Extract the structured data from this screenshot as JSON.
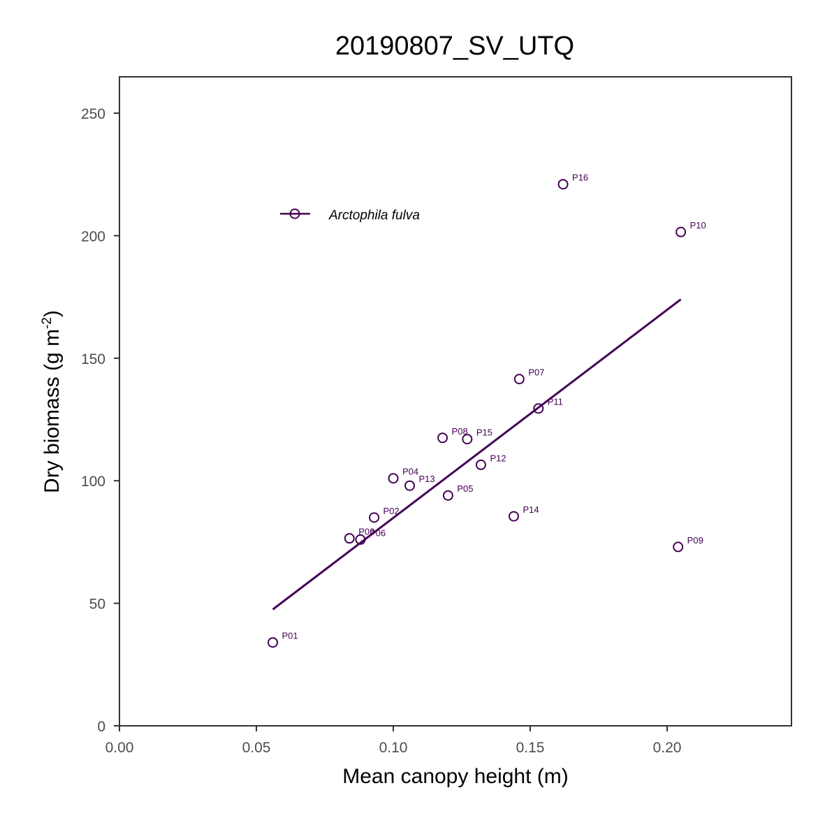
{
  "chart_data": {
    "type": "scatter",
    "title": "20190807_SV_UTQ",
    "xlabel": "Mean canopy height (m)",
    "ylabel": "Dry biomass (g m",
    "ylabel_sup": "-2",
    "ylabel_end": ")",
    "xlim": [
      0,
      0.245
    ],
    "ylim": [
      0,
      263
    ],
    "x_ticks": [
      0.0,
      0.05,
      0.1,
      0.15,
      0.2
    ],
    "x_tick_labels": [
      "0.00",
      "0.05",
      "0.10",
      "0.15",
      "0.20"
    ],
    "y_ticks": [
      0,
      50,
      100,
      150,
      200,
      250
    ],
    "y_tick_labels": [
      "0",
      "50",
      "100",
      "150",
      "200",
      "250"
    ],
    "grid": false,
    "legend": {
      "position": "top-left",
      "entries": [
        "Arctophila fulva"
      ]
    },
    "color": "#440154",
    "series": [
      {
        "name": "Arctophila fulva",
        "points": [
          {
            "label": "P01",
            "x": 0.056,
            "y": 34
          },
          {
            "label": "P02",
            "x": 0.093,
            "y": 85
          },
          {
            "label": "P03",
            "x": 0.084,
            "y": 76.5
          },
          {
            "label": "P04",
            "x": 0.1,
            "y": 101
          },
          {
            "label": "P05",
            "x": 0.12,
            "y": 94
          },
          {
            "label": "P06",
            "x": 0.088,
            "y": 76
          },
          {
            "label": "P07",
            "x": 0.146,
            "y": 141.5
          },
          {
            "label": "P08",
            "x": 0.118,
            "y": 117.5
          },
          {
            "label": "P09",
            "x": 0.204,
            "y": 73
          },
          {
            "label": "P10",
            "x": 0.205,
            "y": 201.5
          },
          {
            "label": "P11",
            "x": 0.153,
            "y": 129.5
          },
          {
            "label": "P12",
            "x": 0.132,
            "y": 106.5
          },
          {
            "label": "P13",
            "x": 0.106,
            "y": 98
          },
          {
            "label": "P14",
            "x": 0.144,
            "y": 85.5
          },
          {
            "label": "P15",
            "x": 0.127,
            "y": 117
          },
          {
            "label": "P16",
            "x": 0.162,
            "y": 221
          }
        ],
        "fit_line": {
          "x": [
            0.056,
            0.205
          ],
          "y": [
            47.5,
            174
          ]
        }
      }
    ]
  }
}
